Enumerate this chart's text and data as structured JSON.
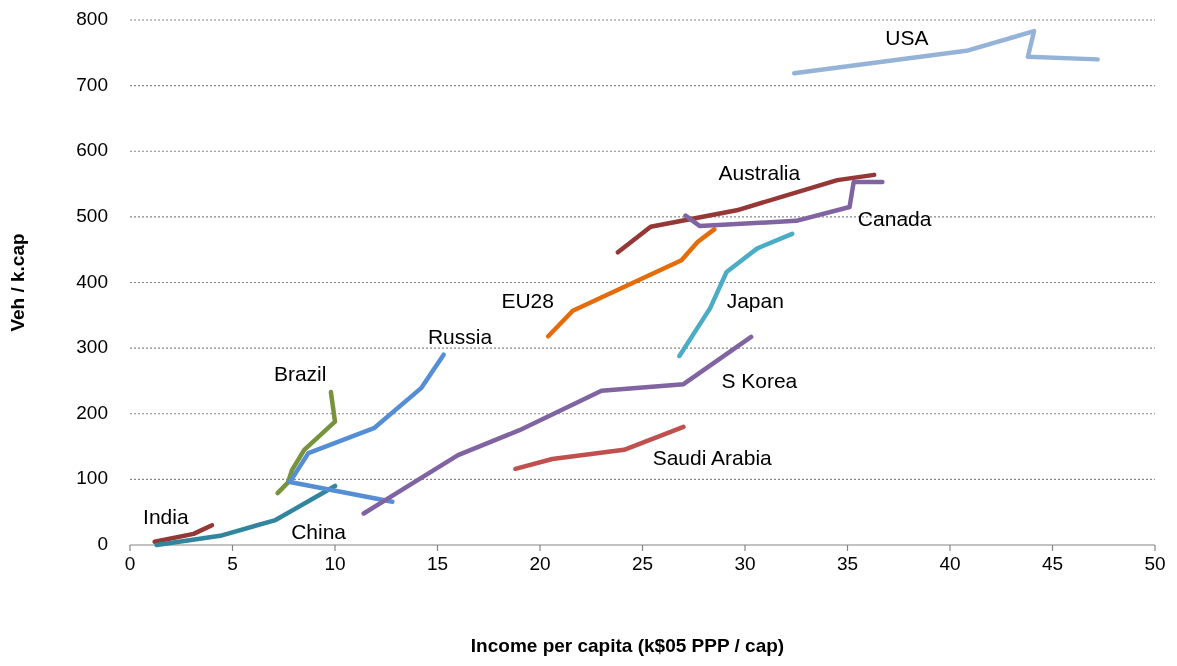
{
  "chart_data": {
    "type": "line",
    "xlabel": "Income per capita  (k$05 PPP / cap)",
    "ylabel": "Veh / k.cap",
    "xlim": [
      0,
      50
    ],
    "xticks": [
      0,
      5,
      10,
      15,
      20,
      25,
      30,
      35,
      40,
      45,
      50
    ],
    "ylim": [
      0,
      800
    ],
    "yticks": [
      0,
      100,
      200,
      300,
      400,
      500,
      600,
      700,
      800
    ],
    "grid": "y",
    "marker": "none",
    "line_style": "solid",
    "series": [
      {
        "name": "India",
        "color": "#953735",
        "x": [
          1.2,
          3.1,
          4
        ],
        "values": [
          5,
          17,
          30
        ]
      },
      {
        "name": "China",
        "color": "#31859c",
        "x": [
          1.3,
          4.4,
          7.1,
          10
        ],
        "values": [
          0,
          14,
          38,
          90
        ]
      },
      {
        "name": "Brazil",
        "color": "#77933c",
        "x": [
          7.2,
          7.7,
          7.9,
          8.5,
          10,
          9.8
        ],
        "values": [
          79,
          95,
          114,
          145,
          188,
          233
        ]
      },
      {
        "name": "Russia",
        "color": "#558ed5",
        "x": [
          12.8,
          7.8,
          8.7,
          11.9,
          14.2,
          15.3
        ],
        "values": [
          66,
          96,
          140,
          178,
          239,
          290
        ]
      },
      {
        "name": "S Korea",
        "color": "#8064a2",
        "x": [
          11.4,
          16,
          19,
          23,
          27,
          30.3
        ],
        "values": [
          48,
          137,
          175,
          235,
          245,
          317
        ]
      },
      {
        "name": "Saudi Arabia",
        "color": "#c0504d",
        "x": [
          18.8,
          20.6,
          24.1,
          27
        ],
        "values": [
          116,
          131,
          145,
          180
        ]
      },
      {
        "name": "EU28",
        "color": "#e46c0a",
        "x": [
          20.4,
          21.6,
          26.9,
          27.7,
          28.5
        ],
        "values": [
          318,
          357,
          434,
          462,
          481
        ]
      },
      {
        "name": "Japan",
        "color": "#4bacc6",
        "x": [
          26.8,
          28.3,
          29.1,
          30.6,
          32.3
        ],
        "values": [
          288,
          361,
          416,
          452,
          474
        ]
      },
      {
        "name": "Australia",
        "color": "#953735",
        "x": [
          23.8,
          25.4,
          29.6,
          34.5,
          36.3
        ],
        "values": [
          446,
          485,
          510,
          556,
          564
        ]
      },
      {
        "name": "Canada",
        "color": "#8064a2",
        "x": [
          27.1,
          27.8,
          32.5,
          35.1,
          35.3,
          36.7
        ],
        "values": [
          502,
          486,
          494,
          515,
          553,
          553
        ]
      },
      {
        "name": "USA",
        "color": "#95b3d7",
        "x": [
          32.4,
          40.8,
          44.1,
          43.8,
          47.2
        ],
        "values": [
          719,
          753,
          783,
          744,
          740
        ]
      }
    ]
  }
}
